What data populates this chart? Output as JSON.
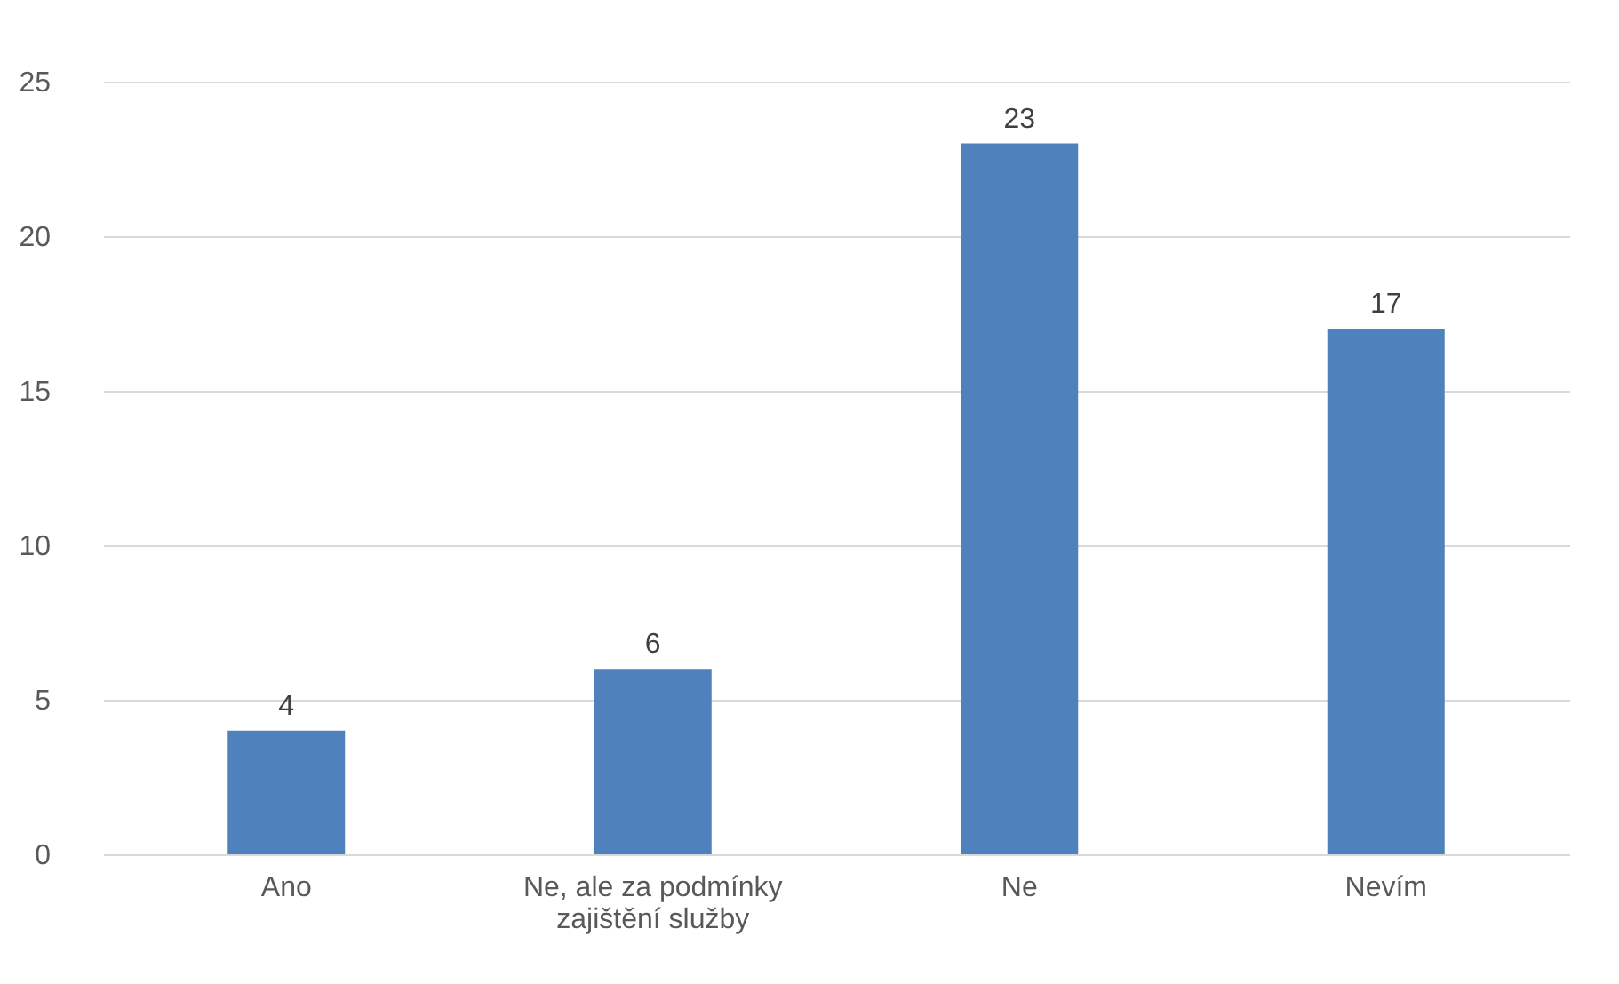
{
  "chart_data": {
    "type": "bar",
    "categories": [
      "Ano",
      "Ne, ale za podmínky zajištění služby",
      "Ne",
      "Nevím"
    ],
    "values": [
      4,
      6,
      23,
      17
    ],
    "color": "#4f81bd",
    "ylim": [
      0,
      25
    ],
    "yticks": [
      0,
      5,
      10,
      15,
      20,
      25
    ],
    "grid": "y",
    "data_labels": true
  }
}
